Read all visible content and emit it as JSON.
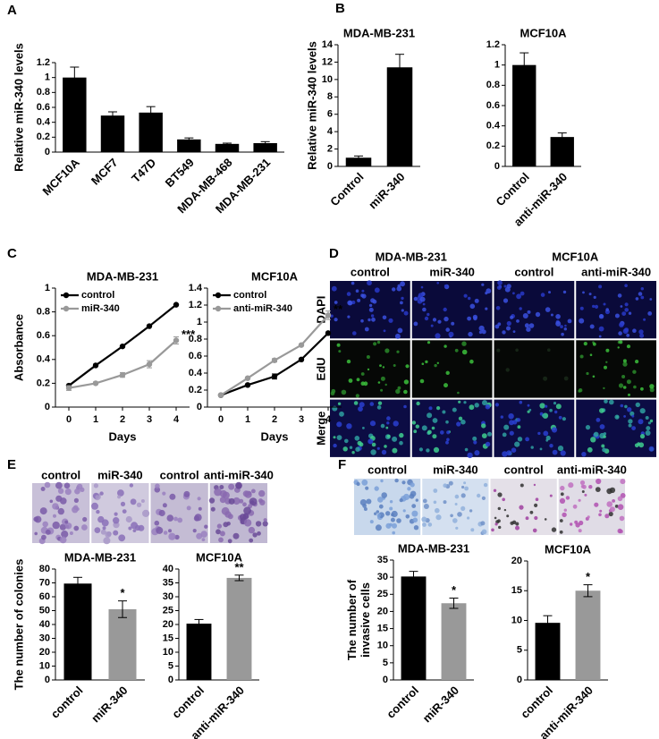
{
  "panel_labels": [
    "A",
    "B",
    "C",
    "D",
    "E",
    "F"
  ],
  "images": {
    "D": {
      "groups": [
        "MDA-MB-231",
        "MCF10A"
      ],
      "columns": [
        "control",
        "miR-340",
        "control",
        "anti-miR-340"
      ],
      "rows": [
        "DAPI",
        "EdU",
        "Merge"
      ]
    },
    "E": {
      "columns": [
        "control",
        "miR-340",
        "control",
        "anti-miR-340"
      ]
    },
    "F": {
      "columns": [
        "control",
        "miR-340",
        "control",
        "anti-miR-340"
      ]
    }
  },
  "chart_data": [
    {
      "type": "bar",
      "ylabel": "Relative miR-340 levels",
      "categories": [
        "MCF10A",
        "MCF7",
        "T47D",
        "BT549",
        "MDA-MB-468",
        "MDA-MB-231"
      ],
      "values": [
        1,
        0.49,
        0.53,
        0.17,
        0.11,
        0.12
      ],
      "errors": [
        0.14,
        0.05,
        0.08,
        0.02,
        0.01,
        0.02
      ],
      "colors": [
        "#000000",
        "#000000",
        "#000000",
        "#000000",
        "#000000",
        "#000000"
      ],
      "ylim": [
        0,
        1.2
      ],
      "yticks": [
        0,
        0.2,
        0.4,
        0.6,
        0.8,
        1,
        1.2
      ]
    },
    {
      "type": "bar",
      "title": "MDA-MB-231",
      "ylabel": "Relative miR-340 levels",
      "categories": [
        "Control",
        "miR-340"
      ],
      "values": [
        1,
        11.4
      ],
      "errors": [
        0.2,
        1.5
      ],
      "colors": [
        "#000000",
        "#000000"
      ],
      "ylim": [
        0,
        14
      ],
      "yticks": [
        0,
        2,
        4,
        6,
        8,
        10,
        12,
        14
      ]
    },
    {
      "type": "bar",
      "title": "MCF10A",
      "categories": [
        "Control",
        "anti-miR-340"
      ],
      "values": [
        1,
        0.29
      ],
      "errors": [
        0.12,
        0.04
      ],
      "colors": [
        "#000000",
        "#000000"
      ],
      "ylim": [
        0,
        1.2
      ],
      "yticks": [
        0,
        0.2,
        0.4,
        0.6,
        0.8,
        1,
        1.2
      ]
    },
    {
      "type": "line",
      "title": "MDA-MB-231",
      "ylabel": "Absorbance",
      "xlabel": "Days",
      "x": [
        0,
        1,
        2,
        3,
        4
      ],
      "xlim": [
        -0.5,
        4.5
      ],
      "xticks": [
        0,
        1,
        2,
        3,
        4
      ],
      "ylim": [
        0,
        1
      ],
      "yticks": [
        0,
        0.2,
        0.4,
        0.6,
        0.8,
        1
      ],
      "annotation": "***",
      "series": [
        {
          "name": "control",
          "color": "#000000",
          "values": [
            0.18,
            0.35,
            0.51,
            0.68,
            0.86
          ]
        },
        {
          "name": "miR-340",
          "color": "#999999",
          "values": [
            0.16,
            0.2,
            0.27,
            0.36,
            0.56
          ],
          "errors": [
            0.02,
            0.01,
            0.02,
            0.03,
            0.03
          ]
        }
      ]
    },
    {
      "type": "line",
      "title": "MCF10A",
      "xlabel": "Days",
      "x": [
        0,
        1,
        2,
        3,
        4
      ],
      "xlim": [
        -0.5,
        4.5
      ],
      "xticks": [
        0,
        1,
        2,
        3,
        4
      ],
      "ylim": [
        0,
        1.4
      ],
      "yticks": [
        0,
        0.2,
        0.4,
        0.6,
        0.8,
        1,
        1.2,
        1.4
      ],
      "annotation": "**",
      "series": [
        {
          "name": "control",
          "color": "#000000",
          "values": [
            0.14,
            0.26,
            0.36,
            0.56,
            0.87
          ],
          "errors": [
            0.01,
            0.01,
            0.03,
            0.01,
            0.01
          ]
        },
        {
          "name": "anti-miR-340",
          "color": "#999999",
          "values": [
            0.14,
            0.34,
            0.55,
            0.73,
            1.08
          ],
          "errors": [
            0.01,
            0.01,
            0.02,
            0.01,
            0.05
          ]
        }
      ]
    },
    {
      "type": "bar",
      "title": "MDA-MB-231",
      "ylabel": "The number of colonies",
      "categories": [
        "control",
        "miR-340"
      ],
      "values": [
        69.5,
        51
      ],
      "errors": [
        4.5,
        6
      ],
      "colors": [
        "#000000",
        "#999999"
      ],
      "annotation": "*",
      "ylim": [
        0,
        80
      ],
      "yticks": [
        0,
        10,
        20,
        30,
        40,
        50,
        60,
        70,
        80
      ]
    },
    {
      "type": "bar",
      "title": "MCF10A",
      "categories": [
        "control",
        "anti-miR-340"
      ],
      "values": [
        20.3,
        36.8
      ],
      "errors": [
        1.5,
        1
      ],
      "colors": [
        "#000000",
        "#999999"
      ],
      "annotation": "**",
      "ylim": [
        0,
        40
      ],
      "yticks": [
        0,
        5,
        10,
        15,
        20,
        25,
        30,
        35,
        40
      ]
    },
    {
      "type": "bar",
      "title": "MDA-MB-231",
      "ylabel": [
        "The number of",
        "invasive cells"
      ],
      "categories": [
        "control",
        "miR-340"
      ],
      "values": [
        30.2,
        22.4
      ],
      "errors": [
        1.5,
        1.5
      ],
      "colors": [
        "#000000",
        "#999999"
      ],
      "annotation": "*",
      "ylim": [
        0,
        35
      ],
      "yticks": [
        0,
        5,
        10,
        15,
        20,
        25,
        30,
        35
      ]
    },
    {
      "type": "bar",
      "title": "MCF10A",
      "categories": [
        "control",
        "anti-miR-340"
      ],
      "values": [
        9.6,
        15
      ],
      "errors": [
        1.2,
        1
      ],
      "colors": [
        "#000000",
        "#999999"
      ],
      "annotation": "*",
      "ylim": [
        0,
        20
      ],
      "yticks": [
        0,
        5,
        10,
        15,
        20
      ]
    }
  ]
}
